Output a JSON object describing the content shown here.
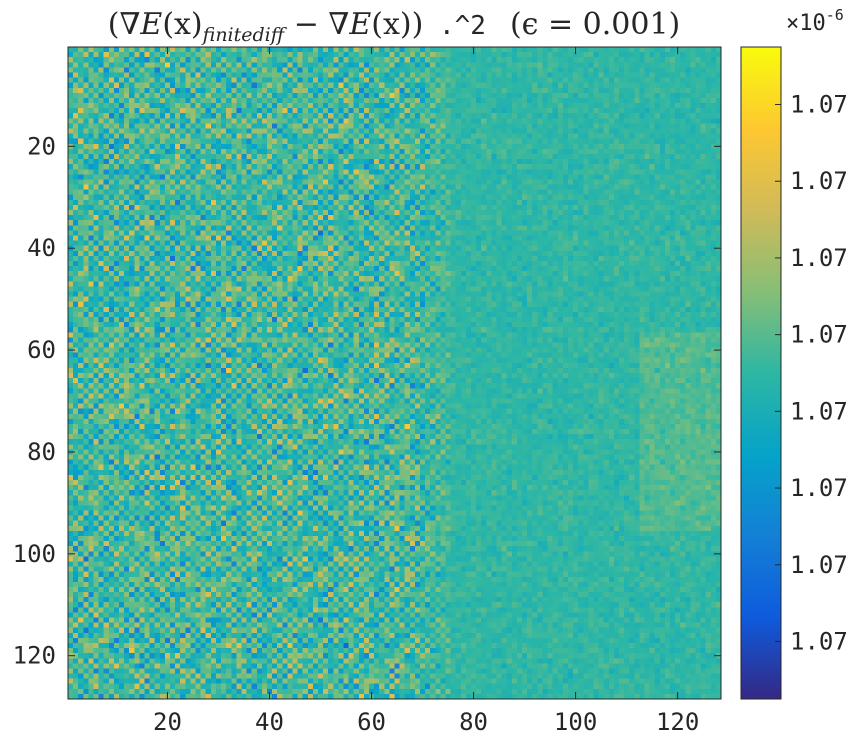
{
  "chart_data": {
    "type": "heatmap",
    "title": "(∇E(x)finitediff − ∇E(x)) .^2  (ϵ = 0.001)",
    "title_parts": {
      "open": "(∇",
      "E": "E",
      "arg1": "(x)",
      "subscript": "finitediff",
      "minus": " − ∇",
      "E2": "E",
      "arg2": "(x))",
      "op": " .^2",
      "eps": "(ϵ = 0.001)"
    },
    "xlabel": "",
    "ylabel": "",
    "grid_size": [
      128,
      128
    ],
    "xlim": [
      0.5,
      128.5
    ],
    "ylim": [
      0.5,
      128.5
    ],
    "y_direction": "reverse",
    "x_ticks": [
      20,
      40,
      60,
      80,
      100,
      120
    ],
    "y_ticks": [
      20,
      40,
      60,
      80,
      100,
      120
    ],
    "colormap": "parula",
    "colormap_stops": [
      "#352a87",
      "#0f5cdd",
      "#1481d6",
      "#06a4ca",
      "#2eb7a4",
      "#87bf77",
      "#d1bb59",
      "#fec832",
      "#f9fb0e"
    ],
    "colorbar": {
      "exponent_label": "×10",
      "exponent": "-6",
      "tick_labels": [
        "1.07",
        "1.07",
        "1.07",
        "1.07",
        "1.07",
        "1.07",
        "1.07",
        "1.07"
      ]
    },
    "structure": {
      "noisy_region_columns": [
        1,
        75
      ],
      "smooth_region_columns": [
        76,
        128
      ],
      "noisy_region": "high-variance checkerboard values spanning the full color range",
      "smooth_region": "low-variance values near the middle of the color range"
    },
    "grid": false,
    "legend": "none",
    "box": true
  }
}
